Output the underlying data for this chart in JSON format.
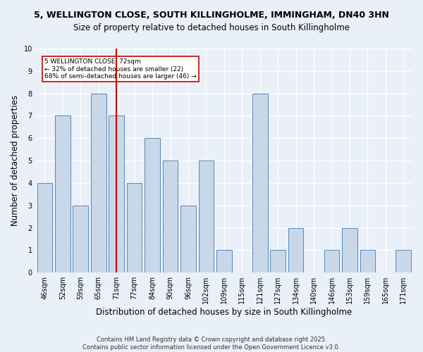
{
  "title_line1": "5, WELLINGTON CLOSE, SOUTH KILLINGHOLME, IMMINGHAM, DN40 3HN",
  "title_line2": "Size of property relative to detached houses in South Killingholme",
  "xlabel": "Distribution of detached houses by size in South Killingholme",
  "ylabel": "Number of detached properties",
  "footnote": "Contains HM Land Registry data © Crown copyright and database right 2025.\nContains public sector information licensed under the Open Government Licence v3.0.",
  "categories": [
    "46sqm",
    "52sqm",
    "59sqm",
    "65sqm",
    "71sqm",
    "77sqm",
    "84sqm",
    "90sqm",
    "96sqm",
    "102sqm",
    "109sqm",
    "115sqm",
    "121sqm",
    "127sqm",
    "134sqm",
    "140sqm",
    "146sqm",
    "153sqm",
    "159sqm",
    "165sqm",
    "171sqm"
  ],
  "values": [
    4,
    7,
    3,
    8,
    7,
    4,
    6,
    5,
    3,
    5,
    1,
    0,
    8,
    1,
    2,
    0,
    1,
    2,
    1,
    0,
    1
  ],
  "bar_color": "#c8d8e8",
  "bar_edge_color": "#5588bb",
  "highlight_x": "71sqm",
  "highlight_color": "#cc0000",
  "annotation_text": "5 WELLINGTON CLOSE: 72sqm\n← 32% of detached houses are smaller (22)\n68% of semi-detached houses are larger (46) →",
  "annotation_box_color": "#ffffff",
  "annotation_box_edge": "#cc0000",
  "ylim": [
    0,
    10
  ],
  "yticks": [
    0,
    1,
    2,
    3,
    4,
    5,
    6,
    7,
    8,
    9,
    10
  ],
  "bg_color": "#eaf0f8",
  "grid_color": "#ffffff",
  "title_fontsize": 9,
  "axis_label_fontsize": 8.5,
  "tick_fontsize": 7,
  "footnote_fontsize": 6
}
